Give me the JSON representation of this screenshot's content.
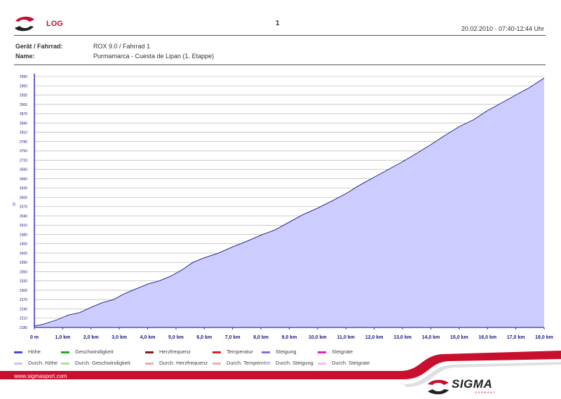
{
  "header": {
    "app_title": "LOG",
    "page_number": "1",
    "date_range": "20.02.2010 · 07:40-12:44 Uhr"
  },
  "meta": {
    "device_label": "Gerät / Fahrrad:",
    "device_value": "ROX 9.0 / Fahrrad 1",
    "name_label": "Name:",
    "name_value": "Purmamarca - Cuesta de Lipan (1. Etappe)"
  },
  "chart_data": {
    "type": "area",
    "xlabel": "",
    "ylabel": "m",
    "xlim": [
      0,
      18
    ],
    "ylim": [
      2180,
      2990
    ],
    "grid": true,
    "x_ticks": [
      "0 m",
      "1,0 km",
      "2,0 km",
      "3,0 km",
      "4,0 km",
      "5,0 km",
      "6,0 km",
      "7,0 km",
      "8,0 km",
      "9,0 km",
      "10,0 km",
      "11,0 km",
      "12,0 km",
      "13,0 km",
      "14,0 km",
      "15,0 km",
      "16,0 km",
      "17,0 km",
      "18,0 km"
    ],
    "y_ticks": [
      "2180",
      "2210",
      "2240",
      "2270",
      "2300",
      "2330",
      "2360",
      "2390",
      "2420",
      "2450",
      "2480",
      "2510",
      "2540",
      "2570",
      "2600",
      "2630",
      "2660",
      "2690",
      "2720",
      "2750",
      "2780",
      "2810",
      "2840",
      "2870",
      "2900",
      "2930",
      "2960",
      "2990"
    ],
    "series": [
      {
        "name": "Höhe",
        "x": [
          0,
          0.3,
          0.8,
          1.2,
          1.6,
          2.0,
          2.4,
          2.8,
          3.2,
          3.6,
          4.0,
          4.4,
          4.8,
          5.2,
          5.6,
          6.0,
          6.5,
          7.0,
          7.5,
          8.0,
          8.5,
          9.0,
          9.5,
          10.0,
          10.5,
          11.0,
          11.5,
          12.0,
          12.5,
          13.0,
          13.5,
          14.0,
          14.5,
          15.0,
          15.5,
          16.0,
          16.5,
          17.0,
          17.5,
          18.0
        ],
        "values": [
          2185,
          2190,
          2205,
          2220,
          2228,
          2245,
          2260,
          2270,
          2290,
          2305,
          2320,
          2330,
          2345,
          2365,
          2390,
          2405,
          2420,
          2440,
          2458,
          2478,
          2495,
          2520,
          2545,
          2565,
          2588,
          2612,
          2640,
          2665,
          2690,
          2715,
          2742,
          2770,
          2800,
          2828,
          2850,
          2880,
          2905,
          2930,
          2955,
          2985
        ]
      }
    ],
    "colors": {
      "fill": "#ccccff",
      "line": "#1a1a80",
      "grid": "#aaaaaa",
      "axis": "#3333cc"
    }
  },
  "legend": [
    {
      "label": "Höhe",
      "color": "#4a4adf"
    },
    {
      "label": "Geschwindigkeit",
      "color": "#22aa22"
    },
    {
      "label": "Herzfrequenz",
      "color": "#8b1a1a"
    },
    {
      "label": "Temperatur",
      "color": "#e02020"
    },
    {
      "label": "Steigung",
      "color": "#8a6ae0"
    },
    {
      "label": "Steigrate",
      "color": "#e020c0"
    },
    {
      "label": "Durch. Höhe",
      "color": "#c8c4f4"
    },
    {
      "label": "Durch. Geschwindigkeit",
      "color": "#a8e0a8"
    },
    {
      "label": "Durch. Herzfrequenz",
      "color": "#e0b0b0"
    },
    {
      "label": "Durch. Temperatur",
      "color": "#f0b0b0"
    },
    {
      "label": "Durch. Steigung",
      "color": "#d0c8f0"
    },
    {
      "label": "Durch. Steigrate",
      "color": "#f0c0e8"
    }
  ],
  "footer": {
    "url": "www.sigmasport.com",
    "brand": "SIGMA",
    "brand_sub": "GERMANY",
    "band_color": "#c8102e"
  }
}
